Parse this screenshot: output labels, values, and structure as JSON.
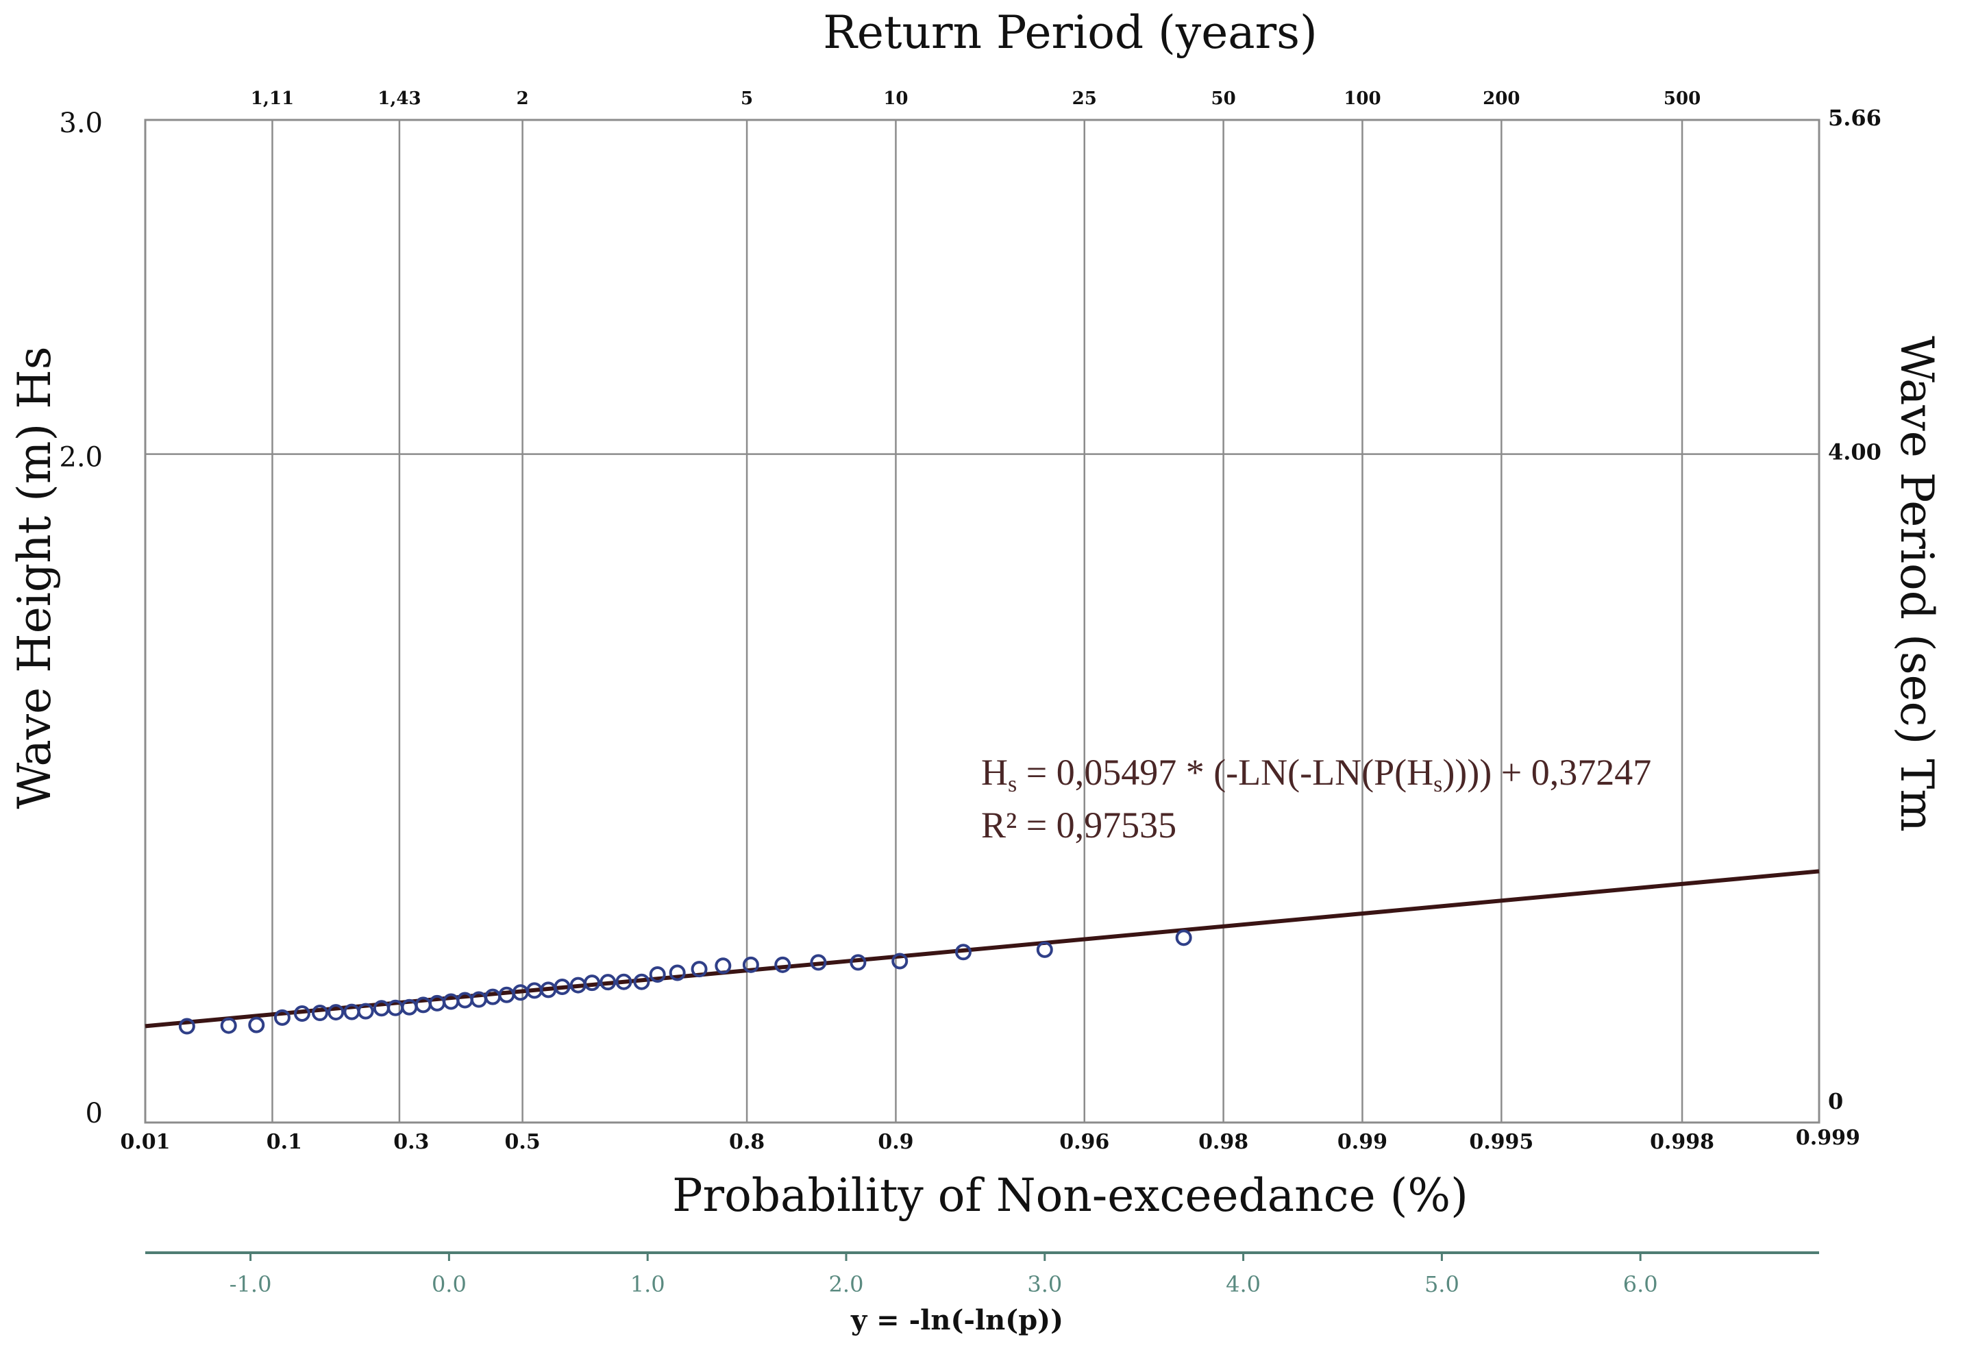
{
  "chart_data": {
    "type": "scatter",
    "title": "Return Period (years)",
    "xlabel": "Probability of Non-exceedance (%)",
    "ylabel": "Wave Height (m) Hs",
    "ylabel_right": "Wave Period (sec) Tm",
    "xlabel_bottom": "y = -ln(-ln(p))",
    "x_reduced_variate_range": [
      -1.53,
      6.9
    ],
    "ylim": [
      0,
      3.0
    ],
    "grid": true,
    "return_period_ticks": [
      {
        "label": "1,11",
        "y": -0.89
      },
      {
        "label": "1,43",
        "y": -0.25
      },
      {
        "label": "2",
        "y": 0.37
      },
      {
        "label": "5",
        "y": 1.5
      },
      {
        "label": "10",
        "y": 2.25
      },
      {
        "label": "25",
        "y": 3.2
      },
      {
        "label": "50",
        "y": 3.9
      },
      {
        "label": "100",
        "y": 4.6
      },
      {
        "label": "200",
        "y": 5.3
      },
      {
        "label": "500",
        "y": 6.21
      }
    ],
    "probability_ticks": [
      {
        "label": "0.01",
        "y": -1.53
      },
      {
        "label": "0.1",
        "y": -0.83
      },
      {
        "label": "0.3",
        "y": -0.19
      },
      {
        "label": "0.5",
        "y": 0.37
      },
      {
        "label": "0.8",
        "y": 1.5
      },
      {
        "label": "0.9",
        "y": 2.25
      },
      {
        "label": "0.96",
        "y": 3.2
      },
      {
        "label": "0.98",
        "y": 3.9
      },
      {
        "label": "0.99",
        "y": 4.6
      },
      {
        "label": "0.995",
        "y": 5.3
      },
      {
        "label": "0.998",
        "y": 6.21
      },
      {
        "label": "0.999",
        "y": 6.91
      }
    ],
    "reduced_variate_ticks": [
      "-1.0",
      "0.0",
      "1.0",
      "2.0",
      "3.0",
      "4.0",
      "5.0",
      "6.0"
    ],
    "y_ticks_left": [
      "0",
      "2.0",
      "3.0"
    ],
    "y_ticks_right": [
      "0",
      "4.00",
      "5.66"
    ],
    "fit": {
      "slope": 0.05497,
      "intercept": 0.37247
    },
    "equation_parts": [
      "H",
      "s",
      " = 0,05497 * (-LN(-LN(P(H",
      "s",
      ")))) + 0,37247"
    ],
    "r_squared_text": "R² = 0,97535",
    "series": [
      {
        "points": [
          {
            "x": -1.32,
            "y": 0.288
          },
          {
            "x": -1.11,
            "y": 0.29
          },
          {
            "x": -0.97,
            "y": 0.292
          },
          {
            "x": -0.84,
            "y": 0.314
          },
          {
            "x": -0.74,
            "y": 0.326
          },
          {
            "x": -0.65,
            "y": 0.328
          },
          {
            "x": -0.57,
            "y": 0.33
          },
          {
            "x": -0.49,
            "y": 0.331
          },
          {
            "x": -0.42,
            "y": 0.333
          },
          {
            "x": -0.34,
            "y": 0.342
          },
          {
            "x": -0.27,
            "y": 0.343
          },
          {
            "x": -0.2,
            "y": 0.345
          },
          {
            "x": -0.13,
            "y": 0.352
          },
          {
            "x": -0.06,
            "y": 0.357
          },
          {
            "x": 0.01,
            "y": 0.362
          },
          {
            "x": 0.08,
            "y": 0.366
          },
          {
            "x": 0.15,
            "y": 0.368
          },
          {
            "x": 0.22,
            "y": 0.376
          },
          {
            "x": 0.29,
            "y": 0.382
          },
          {
            "x": 0.36,
            "y": 0.389
          },
          {
            "x": 0.43,
            "y": 0.395
          },
          {
            "x": 0.5,
            "y": 0.397
          },
          {
            "x": 0.57,
            "y": 0.406
          },
          {
            "x": 0.65,
            "y": 0.411
          },
          {
            "x": 0.72,
            "y": 0.418
          },
          {
            "x": 0.8,
            "y": 0.42
          },
          {
            "x": 0.88,
            "y": 0.421
          },
          {
            "x": 0.97,
            "y": 0.421
          },
          {
            "x": 1.05,
            "y": 0.443
          },
          {
            "x": 1.15,
            "y": 0.448
          },
          {
            "x": 1.26,
            "y": 0.459
          },
          {
            "x": 1.38,
            "y": 0.469
          },
          {
            "x": 1.52,
            "y": 0.472
          },
          {
            "x": 1.68,
            "y": 0.472
          },
          {
            "x": 1.86,
            "y": 0.479
          },
          {
            "x": 2.06,
            "y": 0.479
          },
          {
            "x": 2.27,
            "y": 0.483
          },
          {
            "x": 2.59,
            "y": 0.51
          },
          {
            "x": 3.0,
            "y": 0.517
          },
          {
            "x": 3.7,
            "y": 0.553
          }
        ]
      }
    ]
  }
}
